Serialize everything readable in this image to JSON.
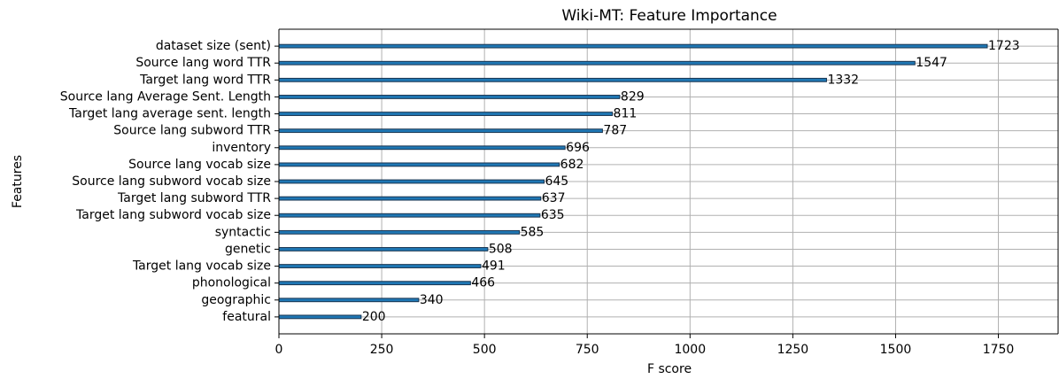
{
  "chart_data": {
    "type": "barh",
    "title": "Wiki-MT: Feature Importance",
    "x_label": "F score",
    "y_label": "Features",
    "categories": [
      "dataset size (sent)",
      "Source lang word TTR",
      "Target lang word TTR",
      "Source lang Average Sent. Length",
      "Target lang average sent. length",
      "Source lang subword TTR",
      "inventory",
      "Source lang vocab size",
      "Source lang subword vocab size",
      "Target lang subword TTR",
      "Target lang subword vocab size",
      "syntactic",
      "genetic",
      "Target lang vocab size",
      "phonological",
      "geographic",
      "featural"
    ],
    "values": [
      1723,
      1547,
      1332,
      829,
      811,
      787,
      696,
      682,
      645,
      637,
      635,
      585,
      508,
      491,
      466,
      340,
      200
    ],
    "color": "#1f77b4",
    "xlim": [
      0,
      1895.3
    ],
    "xticks": [
      0,
      250,
      500,
      750,
      1000,
      1250,
      1500,
      1750
    ],
    "grid": true
  }
}
